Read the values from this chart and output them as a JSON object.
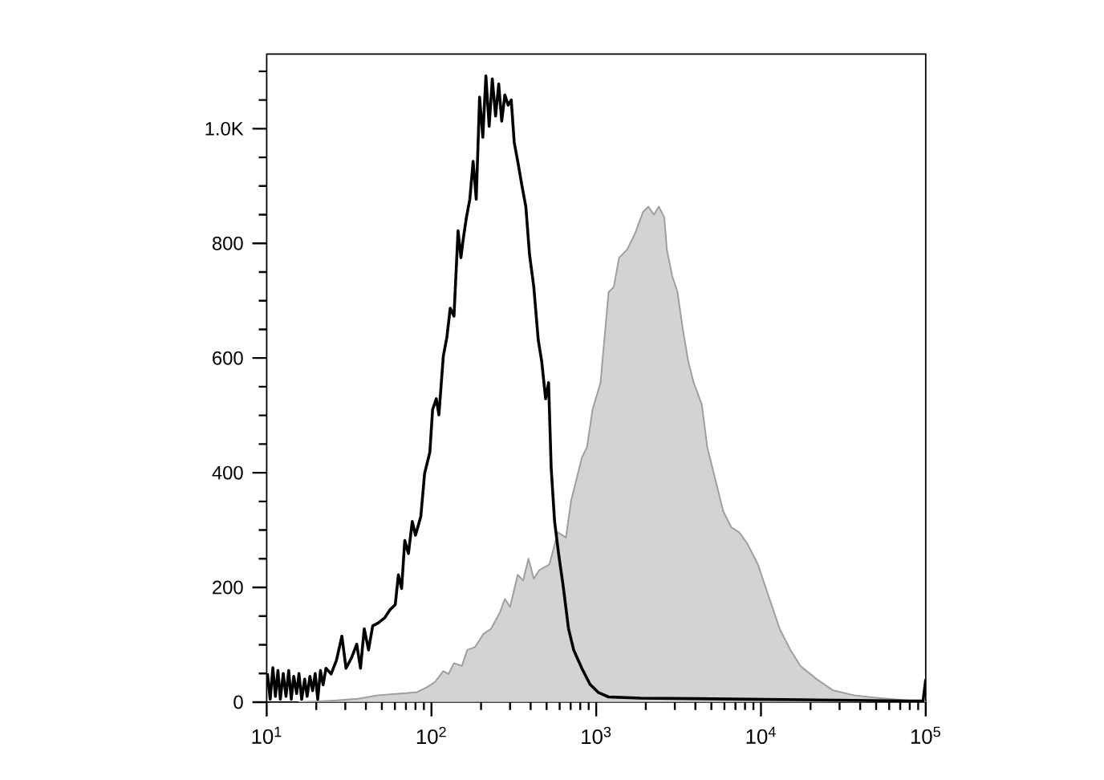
{
  "chart_data": {
    "type": "area",
    "log": "x",
    "marker": "none",
    "xlim": [
      10,
      100000
    ],
    "ylim": [
      0,
      1130
    ],
    "xticks": [
      {
        "value": 10,
        "label": "10$^{1}$"
      },
      {
        "value": 20,
        "label": null
      },
      {
        "value": 30,
        "label": null
      },
      {
        "value": 40,
        "label": null
      },
      {
        "value": 50,
        "label": null
      },
      {
        "value": 60,
        "label": null
      },
      {
        "value": 70,
        "label": null
      },
      {
        "value": 80,
        "label": null
      },
      {
        "value": 90,
        "label": null
      },
      {
        "value": 100,
        "label": "10$^{2}$"
      },
      {
        "value": 200,
        "label": null
      },
      {
        "value": 300,
        "label": null
      },
      {
        "value": 400,
        "label": null
      },
      {
        "value": 500,
        "label": null
      },
      {
        "value": 600,
        "label": null
      },
      {
        "value": 700,
        "label": null
      },
      {
        "value": 800,
        "label": null
      },
      {
        "value": 900,
        "label": null
      },
      {
        "value": 1000,
        "label": "10$^{3}$"
      },
      {
        "value": 2000,
        "label": null
      },
      {
        "value": 3000,
        "label": null
      },
      {
        "value": 4000,
        "label": null
      },
      {
        "value": 5000,
        "label": null
      },
      {
        "value": 6000,
        "label": null
      },
      {
        "value": 7000,
        "label": null
      },
      {
        "value": 8000,
        "label": null
      },
      {
        "value": 9000,
        "label": null
      },
      {
        "value": 10000,
        "label": "10$^{4}$"
      },
      {
        "value": 20000,
        "label": null
      },
      {
        "value": 30000,
        "label": null
      },
      {
        "value": 40000,
        "label": null
      },
      {
        "value": 50000,
        "label": null
      },
      {
        "value": 60000,
        "label": null
      },
      {
        "value": 70000,
        "label": null
      },
      {
        "value": 80000,
        "label": null
      },
      {
        "value": 90000,
        "label": null
      },
      {
        "value": 100000,
        "label": "10$^{5}$"
      }
    ],
    "yticks": [
      0,
      {
        "value": 50,
        "label": null
      },
      {
        "value": 100,
        "label": null
      },
      {
        "value": 150,
        "label": null
      },
      200,
      {
        "value": 250,
        "label": null
      },
      {
        "value": 300,
        "label": null
      },
      {
        "value": 350,
        "label": null
      },
      400,
      {
        "value": 450,
        "label": null
      },
      {
        "value": 500,
        "label": null
      },
      {
        "value": 550,
        "label": null
      },
      600,
      {
        "value": 650,
        "label": null
      },
      {
        "value": 700,
        "label": null
      },
      {
        "value": 750,
        "label": null
      },
      800,
      {
        "value": 850,
        "label": null
      },
      {
        "value": 900,
        "label": null
      },
      {
        "value": 950,
        "label": null
      },
      {
        "value": 1000,
        "label": "1.0K"
      },
      {
        "value": 1050,
        "label": null
      },
      {
        "value": 1100,
        "label": null
      }
    ],
    "series": [
      {
        "color": "#d3d3d3",
        "x": [
          15.7,
          22.9,
          26.5,
          35.7,
          47.5,
          65,
          81,
          94,
          105,
          118,
          127,
          137,
          153,
          165,
          184,
          207,
          230,
          260,
          279,
          300,
          334,
          360,
          388,
          418,
          451,
          520,
          585,
          655,
          705,
          818,
          880,
          950,
          1062,
          1189,
          1278,
          1377,
          1539,
          1720,
          1925,
          2075,
          2237,
          2400,
          2590,
          2685,
          2895,
          3115,
          3355,
          3620,
          3908,
          4375,
          4720,
          5275,
          5900,
          6600,
          7380,
          8240,
          9590,
          11150,
          12980,
          15100,
          17380,
          21800,
          27200,
          36560,
          53000,
          76900,
          100000
        ],
        "values": [
          0,
          2,
          3,
          6,
          12,
          15,
          17,
          26,
          35,
          54,
          49,
          68,
          63,
          91,
          96,
          119,
          128,
          156,
          180,
          166,
          222,
          212,
          250,
          215,
          230,
          240,
          296,
          287,
          352,
          426,
          445,
          510,
          557,
          715,
          724,
          775,
          789,
          817,
          855,
          864,
          850,
          864,
          845,
          789,
          743,
          715,
          650,
          594,
          557,
          519,
          445,
          389,
          333,
          305,
          296,
          277,
          240,
          184,
          128,
          91,
          63,
          40,
          21,
          12,
          7,
          3,
          0
        ]
      },
      {
        "type": "line",
        "color": "#000000",
        "x": [
          10.1,
          10.5,
          10.9,
          11.3,
          11.7,
          12.1,
          12.6,
          13.1,
          13.6,
          14.1,
          14.6,
          15.2,
          15.7,
          16.3,
          17.0,
          17.6,
          18.3,
          19.0,
          19.7,
          20.4,
          21.2,
          22.0,
          22.9,
          24.6,
          26.5,
          28.6,
          30.3,
          32.7,
          35.2,
          37.1,
          39.1,
          41.5,
          44.0,
          47.5,
          52.0,
          56.0,
          60.3,
          63.0,
          65.9,
          68.9,
          72.5,
          76.5,
          80.0,
          86.2,
          90.9,
          94.2,
          97.8,
          101.6,
          107,
          111,
          118,
          124,
          130,
          137,
          145,
          151,
          156,
          163,
          171,
          179,
          187,
          196,
          205,
          214,
          224,
          234,
          245,
          256,
          267,
          279,
          292,
          305,
          318,
          334,
          354,
          374,
          394,
          418,
          445,
          467,
          493,
          514,
          533,
          559,
          591,
          630,
          679,
          730,
          818,
          917,
          1028,
          1189,
          1858,
          3908,
          8240,
          17380,
          36560,
          76900,
          96300,
          100000
        ],
        "values": [
          50,
          5,
          60,
          10,
          55,
          5,
          50,
          10,
          55,
          5,
          45,
          15,
          50,
          5,
          40,
          10,
          45,
          20,
          50,
          5,
          55,
          30,
          59,
          49,
          73,
          115,
          59,
          77,
          101,
          59,
          128,
          91,
          133,
          138,
          147,
          161,
          170,
          222,
          198,
          282,
          259,
          315,
          291,
          324,
          399,
          417,
          436,
          510,
          529,
          501,
          603,
          636,
          687,
          673,
          822,
          775,
          808,
          845,
          877,
          943,
          877,
          1055,
          985,
          1092,
          1004,
          1087,
          1022,
          1078,
          1013,
          1059,
          1041,
          1050,
          976,
          943,
          901,
          864,
          780,
          724,
          631,
          594,
          529,
          557,
          408,
          315,
          259,
          203,
          128,
          91,
          59,
          31,
          17,
          9,
          7,
          6,
          5,
          4,
          3,
          2,
          2,
          40
        ]
      }
    ]
  }
}
